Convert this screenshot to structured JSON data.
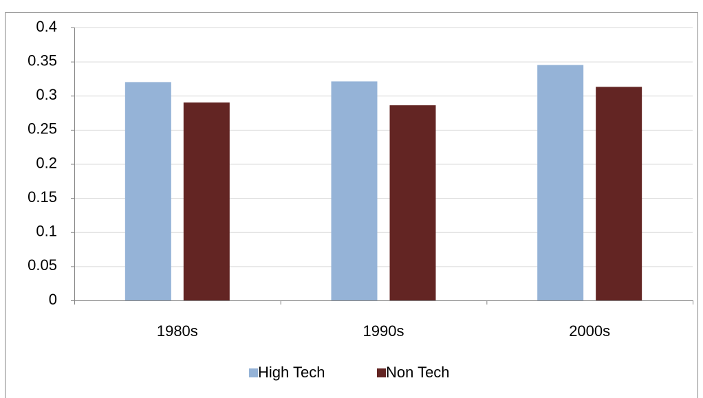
{
  "chart_data": {
    "type": "bar",
    "categories": [
      "1980s",
      "1990s",
      "2000s"
    ],
    "series": [
      {
        "name": "High Tech",
        "color": "#95b3d7",
        "values": [
          0.32,
          0.321,
          0.345
        ]
      },
      {
        "name": "Non Tech",
        "color": "#632523",
        "values": [
          0.29,
          0.286,
          0.313
        ]
      }
    ],
    "ylim": [
      0,
      0.4
    ],
    "yticks": [
      0,
      0.05,
      0.1,
      0.15,
      0.2,
      0.25,
      0.3,
      0.35,
      0.4
    ],
    "grid": true,
    "legend": "bottom"
  }
}
